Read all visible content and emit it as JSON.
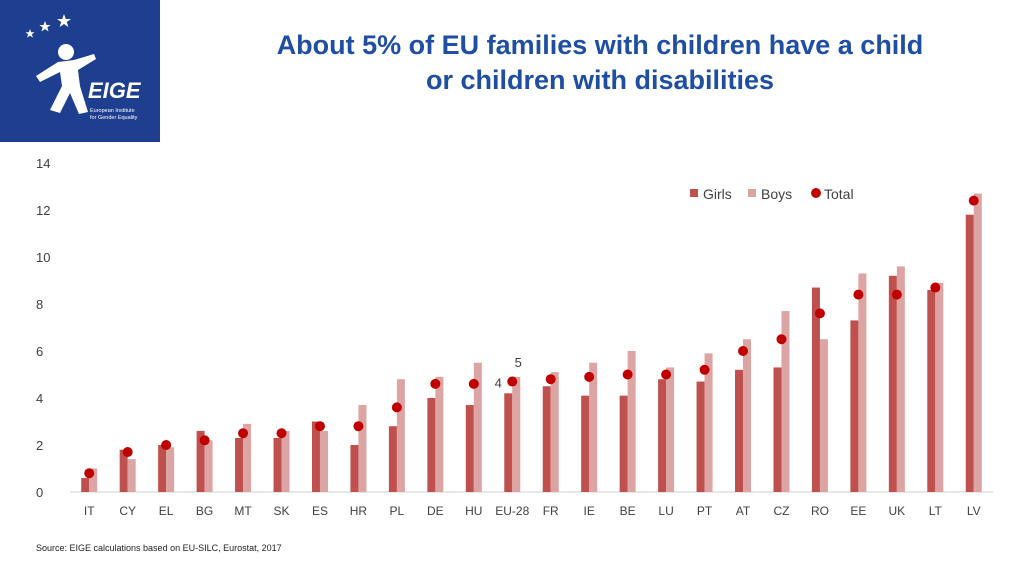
{
  "logo": {
    "wordmark": "EIGE",
    "subtitle_line1": "European Institute",
    "subtitle_line2": "for Gender Equality"
  },
  "title": {
    "line1": "About 5% of EU families with children have a child",
    "line2": "or children with disabilities"
  },
  "source": "Source: EIGE calculations based on EU-SILC, Eurostat, 2017",
  "colors": {
    "brand": "#1e3f8f",
    "title": "#1f4ea3",
    "girls": "#c0504d",
    "boys": "#dca4a2",
    "total": "#c00000"
  },
  "chart_data": {
    "type": "bar",
    "title": "",
    "xlabel": "",
    "ylabel": "",
    "ylim": [
      0,
      14
    ],
    "yticks": [
      0,
      2,
      4,
      6,
      8,
      10,
      12,
      14
    ],
    "grid": false,
    "legend_position": "top-right",
    "categories": [
      "IT",
      "CY",
      "EL",
      "BG",
      "MT",
      "SK",
      "ES",
      "HR",
      "PL",
      "DE",
      "HU",
      "EU-28",
      "FR",
      "IE",
      "BE",
      "LU",
      "PT",
      "AT",
      "CZ",
      "RO",
      "EE",
      "UK",
      "LT",
      "LV"
    ],
    "series": [
      {
        "name": "Girls",
        "kind": "bar",
        "values": [
          0.6,
          1.8,
          2.0,
          2.6,
          2.3,
          2.3,
          3.0,
          2.0,
          2.8,
          4.0,
          3.7,
          4.2,
          4.5,
          4.1,
          4.1,
          4.8,
          4.7,
          5.2,
          5.3,
          8.7,
          7.3,
          9.2,
          8.6,
          11.8
        ]
      },
      {
        "name": "Boys",
        "kind": "bar",
        "values": [
          1.0,
          1.4,
          1.9,
          2.2,
          2.9,
          2.6,
          2.6,
          3.7,
          4.8,
          4.9,
          5.5,
          4.9,
          5.1,
          5.5,
          6.0,
          5.3,
          5.9,
          6.5,
          7.7,
          6.5,
          9.3,
          9.6,
          8.9,
          12.7
        ]
      },
      {
        "name": "Total",
        "kind": "dot",
        "values": [
          0.8,
          1.7,
          2.0,
          2.2,
          2.5,
          2.5,
          2.8,
          2.8,
          3.6,
          4.6,
          4.6,
          4.7,
          4.8,
          4.9,
          5.0,
          5.0,
          5.2,
          6.0,
          6.5,
          7.6,
          8.4,
          8.4,
          8.7,
          12.4
        ]
      }
    ],
    "annotations": [
      {
        "text": "4",
        "category": "EU-28",
        "series": "Girls"
      },
      {
        "text": "5",
        "category": "EU-28",
        "series": "Boys"
      }
    ]
  }
}
